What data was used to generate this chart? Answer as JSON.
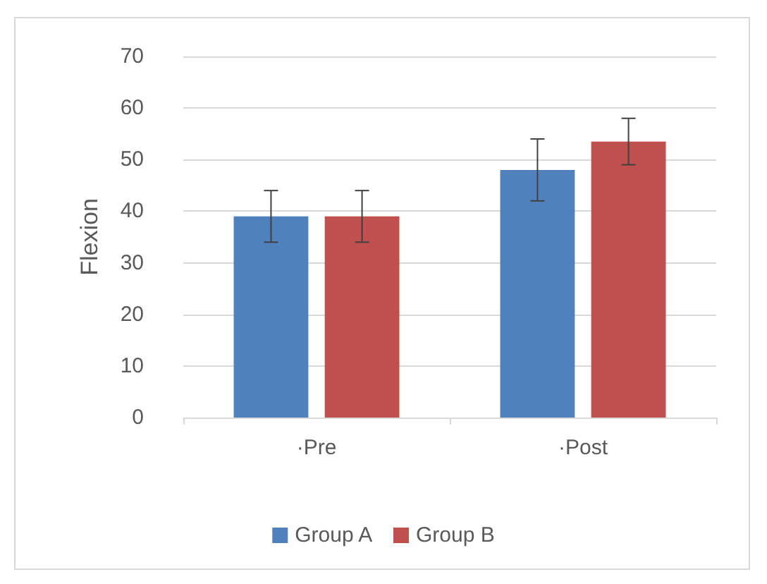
{
  "chart_data": {
    "type": "bar",
    "ylabel": "Flexion",
    "categories": [
      "·Pre",
      "·Post"
    ],
    "series": [
      {
        "name": "Group A",
        "color": "#4f81bd",
        "values": [
          39,
          48
        ],
        "errors": [
          5,
          6
        ]
      },
      {
        "name": "Group B",
        "color": "#c0504d",
        "values": [
          39,
          53.5
        ],
        "errors": [
          5,
          4.5
        ]
      }
    ],
    "ylim": [
      0,
      70
    ],
    "yticks": [
      0,
      10,
      20,
      30,
      40,
      50,
      60,
      70
    ],
    "grid": "y",
    "legend": "bottom"
  }
}
